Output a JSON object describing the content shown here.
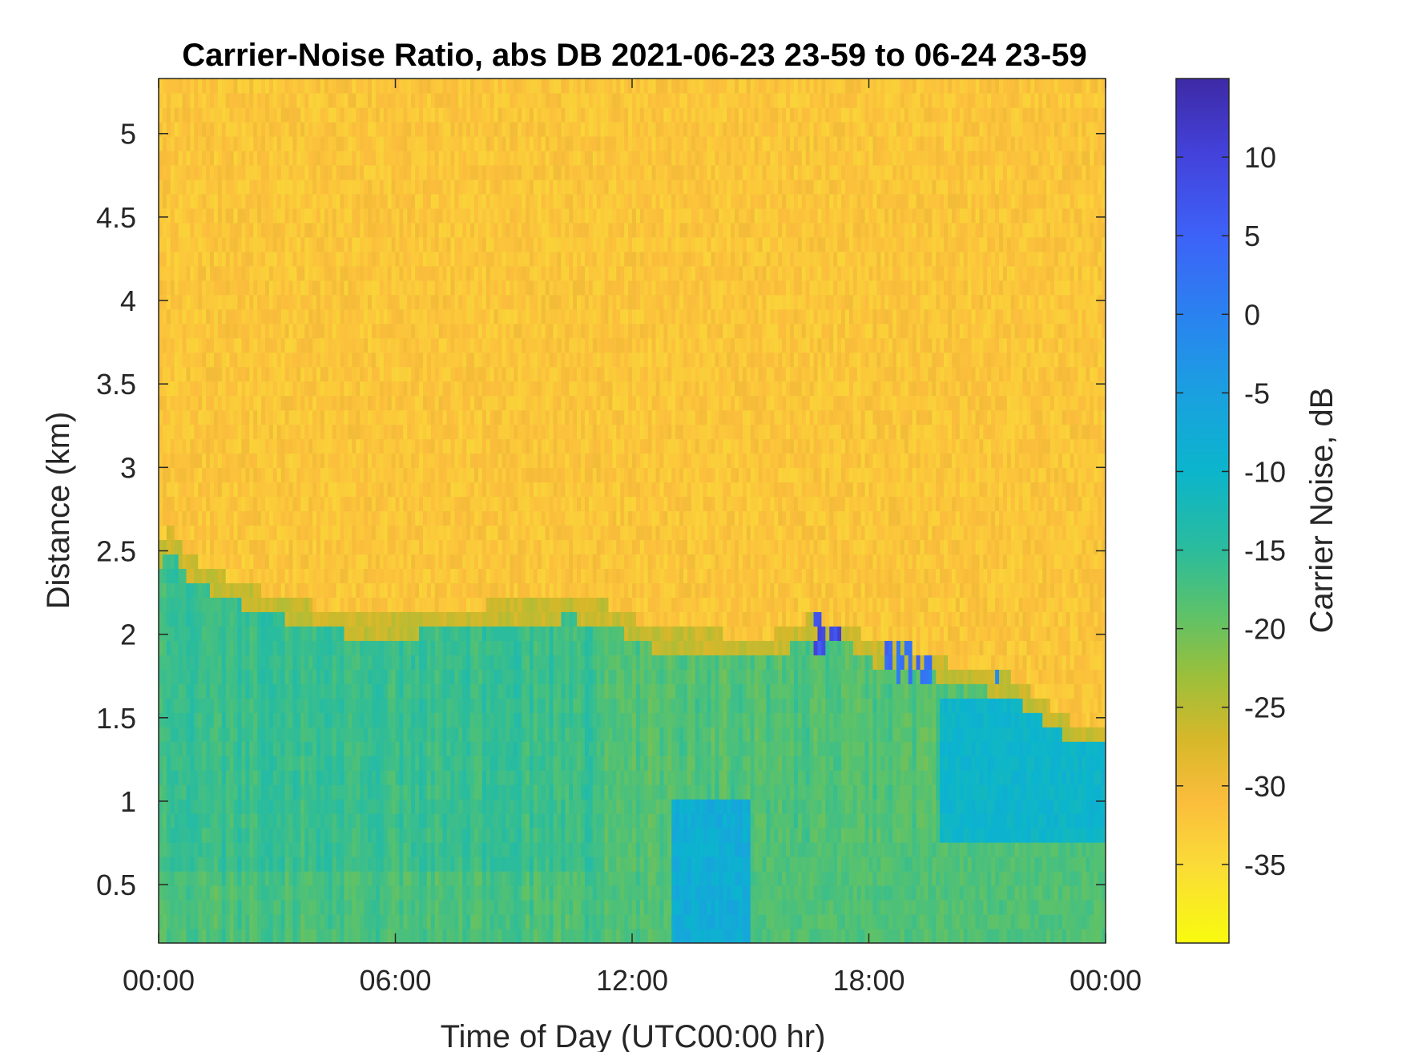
{
  "chart_data": {
    "type": "heatmap",
    "title": "Carrier-Noise Ratio, abs DB 2021-06-23 23-59 to 06-24 23-59",
    "xlabel": "Time of Day (UTC00:00 hr)",
    "ylabel": "Distance (km)",
    "xlim": [
      0,
      24
    ],
    "ylim": [
      0.15,
      5.33
    ],
    "x_ticks": [
      {
        "value": 0,
        "label": "00:00"
      },
      {
        "value": 6,
        "label": "06:00"
      },
      {
        "value": 12,
        "label": "12:00"
      },
      {
        "value": 18,
        "label": "18:00"
      },
      {
        "value": 24,
        "label": "00:00"
      }
    ],
    "y_ticks": [
      {
        "value": 0.5,
        "label": "0.5"
      },
      {
        "value": 1,
        "label": "1"
      },
      {
        "value": 1.5,
        "label": "1.5"
      },
      {
        "value": 2,
        "label": "2"
      },
      {
        "value": 2.5,
        "label": "2.5"
      },
      {
        "value": 3,
        "label": "3"
      },
      {
        "value": 3.5,
        "label": "3.5"
      },
      {
        "value": 4,
        "label": "4"
      },
      {
        "value": 4.5,
        "label": "4.5"
      },
      {
        "value": 5,
        "label": "5"
      }
    ],
    "colorbar": {
      "label": "Carrier Noise, dB",
      "range": [
        -40,
        15
      ],
      "ticks": [
        {
          "value": 10,
          "label": "10"
        },
        {
          "value": 5,
          "label": "5"
        },
        {
          "value": 0,
          "label": "0"
        },
        {
          "value": -5,
          "label": "-5"
        },
        {
          "value": -10,
          "label": "-10"
        },
        {
          "value": -15,
          "label": "-15"
        },
        {
          "value": -20,
          "label": "-20"
        },
        {
          "value": -25,
          "label": "-25"
        },
        {
          "value": -30,
          "label": "-30"
        },
        {
          "value": -35,
          "label": "-35"
        }
      ],
      "colormap_stops": [
        {
          "value": -40,
          "color": "#f9fb0e"
        },
        {
          "value": -35,
          "color": "#fadb38"
        },
        {
          "value": -31,
          "color": "#fbbd3c"
        },
        {
          "value": -27,
          "color": "#d6b82a"
        },
        {
          "value": -23,
          "color": "#9bbf3a"
        },
        {
          "value": -19,
          "color": "#5cc26a"
        },
        {
          "value": -15,
          "color": "#2bbc9c"
        },
        {
          "value": -10,
          "color": "#0bb5cc"
        },
        {
          "value": -5,
          "color": "#1aa0e0"
        },
        {
          "value": 0,
          "color": "#2a82f0"
        },
        {
          "value": 5,
          "color": "#3d62f8"
        },
        {
          "value": 10,
          "color": "#4343dc"
        },
        {
          "value": 15,
          "color": "#3e2aa6"
        }
      ]
    },
    "boundary_profile": [
      {
        "time": 0.0,
        "distance": 2.45
      },
      {
        "time": 0.3,
        "distance": 2.6
      },
      {
        "time": 0.6,
        "distance": 2.45
      },
      {
        "time": 1.3,
        "distance": 2.35
      },
      {
        "time": 2.5,
        "distance": 2.22
      },
      {
        "time": 4.0,
        "distance": 2.12
      },
      {
        "time": 5.5,
        "distance": 2.05
      },
      {
        "time": 7.0,
        "distance": 2.1
      },
      {
        "time": 10.5,
        "distance": 2.18
      },
      {
        "time": 11.5,
        "distance": 2.12
      },
      {
        "time": 12.5,
        "distance": 2.0
      },
      {
        "time": 14.5,
        "distance": 1.95
      },
      {
        "time": 15.5,
        "distance": 1.95
      },
      {
        "time": 16.5,
        "distance": 2.05
      },
      {
        "time": 17.5,
        "distance": 2.02
      },
      {
        "time": 18.0,
        "distance": 1.92
      },
      {
        "time": 19.5,
        "distance": 1.85
      },
      {
        "time": 20.0,
        "distance": 1.78
      },
      {
        "time": 21.5,
        "distance": 1.72
      },
      {
        "time": 22.5,
        "distance": 1.55
      },
      {
        "time": 23.2,
        "distance": 1.42
      },
      {
        "time": 24.0,
        "distance": 1.4
      }
    ],
    "regions": {
      "upper_background_dB": -32,
      "lower_background_dB": -18,
      "morning_lower_dB": -16,
      "midday_patch": {
        "time": [
          13.0,
          15.0
        ],
        "distance": [
          0.15,
          1.0
        ],
        "dB": -8
      },
      "evening_blue_patches": [
        {
          "time": [
            16.6,
            17.3
          ],
          "distance": [
            1.85,
            2.12
          ],
          "dB": 8
        },
        {
          "time": [
            18.4,
            19.6
          ],
          "distance": [
            1.72,
            1.92
          ],
          "dB": 3
        },
        {
          "time": [
            21.1,
            21.3
          ],
          "distance": [
            1.7,
            1.85
          ],
          "dB": 0
        }
      ],
      "late_cool_zone": {
        "time": [
          19.8,
          24.0
        ],
        "distance": [
          0.75,
          1.6
        ],
        "dB": -10
      }
    }
  }
}
